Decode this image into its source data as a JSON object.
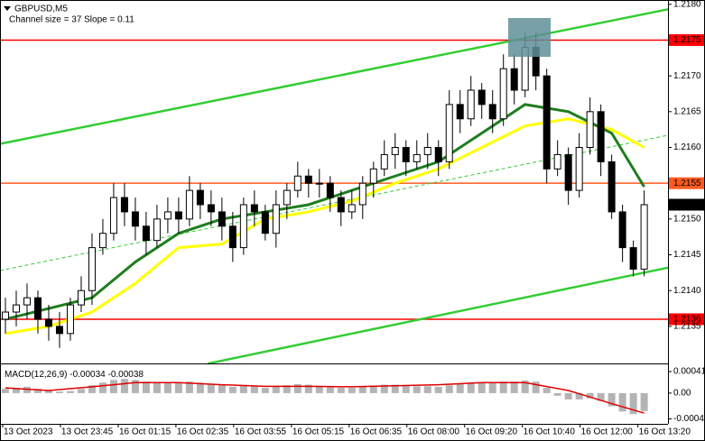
{
  "chart_data": {
    "type": "candlestick",
    "title": "GBPUSD,M5",
    "subtitle": "Channel size = 37 Slope = 0.11",
    "ylim": [
      1.21302,
      1.21806
    ],
    "xlim": [
      -0.5,
      61.2
    ],
    "yticks": [
      {
        "value": 1.218,
        "label": "1.2180"
      },
      {
        "value": 1.217,
        "label": "1.2170"
      },
      1.2165,
      {
        "value": 1.216,
        "label": "1.2160"
      },
      {
        "value": 1.215,
        "label": "1.2150"
      },
      1.2145,
      {
        "value": 1.214,
        "label": "1.2140"
      },
      1.2135
    ],
    "xticks": [
      {
        "value": -0.25,
        "label": "13 Oct 2023"
      },
      {
        "value": 5.08,
        "label": "13 Oct 23:45"
      },
      {
        "value": 10.42,
        "label": "16 Oct 01:15"
      },
      {
        "value": 15.75,
        "label": "16 Oct 02:35"
      },
      {
        "value": 21.08,
        "label": "16 Oct 03:55"
      },
      {
        "value": 26.42,
        "label": "16 Oct 05:15"
      },
      {
        "value": 31.75,
        "label": "16 Oct 06:35"
      },
      {
        "value": 37.08,
        "label": "16 Oct 08:00"
      },
      {
        "value": 42.42,
        "label": "16 Oct 09:20"
      },
      {
        "value": 47.75,
        "label": "16 Oct 10:40"
      },
      {
        "value": 53.08,
        "label": "16 Oct 12:00"
      },
      {
        "value": 58.42,
        "label": "16 Oct 13:20"
      }
    ],
    "x": [
      0,
      1,
      2,
      3,
      4,
      5,
      6,
      7,
      8,
      9,
      10,
      11,
      12,
      13,
      14,
      15,
      16,
      17,
      18,
      19,
      20,
      21,
      22,
      23,
      24,
      25,
      26,
      27,
      28,
      29,
      30,
      31,
      32,
      33,
      34,
      35,
      36,
      37,
      38,
      39,
      40,
      41,
      42,
      43,
      44,
      45,
      46,
      47,
      48,
      49,
      50,
      51,
      52,
      53,
      54,
      55,
      56,
      57,
      58,
      59
    ],
    "open": [
      1.2136,
      1.2137,
      1.2138,
      1.2139,
      1.2136,
      1.2135,
      1.2134,
      1.2138,
      1.214,
      1.2146,
      1.2148,
      1.2153,
      1.2151,
      1.2149,
      1.2147,
      1.215,
      1.2151,
      1.215,
      1.2154,
      1.2152,
      1.2151,
      1.2149,
      1.2146,
      1.2152,
      1.2151,
      1.2148,
      1.2152,
      1.2154,
      1.2156,
      1.2155,
      1.2155,
      1.2153,
      1.2151,
      1.2152,
      1.2155,
      1.2157,
      1.2159,
      1.216,
      1.2158,
      1.2159,
      1.216,
      1.2158,
      1.2166,
      1.2164,
      1.2168,
      1.2166,
      1.2164,
      1.2171,
      1.2168,
      1.2174,
      1.217,
      1.2157,
      1.2159,
      1.2154,
      1.216,
      1.2165,
      1.2158,
      1.2151,
      1.2146,
      1.2143
    ],
    "high": [
      1.2139,
      1.214,
      1.2141,
      1.214,
      1.2138,
      1.2137,
      1.2139,
      1.2142,
      1.2148,
      1.215,
      1.2155,
      1.2155,
      1.2153,
      1.2151,
      1.2152,
      1.2153,
      1.2153,
      1.2156,
      1.2155,
      1.2154,
      1.2153,
      1.2151,
      1.2153,
      1.2154,
      1.2152,
      1.2154,
      1.2155,
      1.2158,
      1.2157,
      1.2157,
      1.2156,
      1.2154,
      1.2154,
      1.2156,
      1.2158,
      1.2161,
      1.2162,
      1.2161,
      1.2161,
      1.2162,
      1.2161,
      1.2168,
      1.2168,
      1.217,
      1.2169,
      1.2168,
      1.2173,
      1.2173,
      1.2176,
      1.2176,
      1.2171,
      1.2161,
      1.216,
      1.2162,
      1.2167,
      1.2166,
      1.2159,
      1.2152,
      1.2147,
      1.2154
    ],
    "low": [
      1.2134,
      1.2135,
      1.2136,
      1.2134,
      1.2133,
      1.2132,
      1.2133,
      1.2137,
      1.2138,
      1.2145,
      1.2147,
      1.2149,
      1.2147,
      1.2145,
      1.2146,
      1.2148,
      1.2148,
      1.2149,
      1.215,
      1.2149,
      1.2147,
      1.2144,
      1.2145,
      1.2149,
      1.2147,
      1.2146,
      1.215,
      1.2153,
      1.2153,
      1.2153,
      1.2151,
      1.2149,
      1.215,
      1.215,
      1.2153,
      1.2156,
      1.2157,
      1.2156,
      1.2157,
      1.2157,
      1.2156,
      1.2157,
      1.2162,
      1.2163,
      1.2164,
      1.2162,
      1.2163,
      1.2166,
      1.2167,
      1.2168,
      1.2155,
      1.2156,
      1.2152,
      1.2153,
      1.2159,
      1.2156,
      1.215,
      1.2144,
      1.2142,
      1.2142
    ],
    "close": [
      1.2137,
      1.2138,
      1.2139,
      1.2136,
      1.2135,
      1.2134,
      1.2138,
      1.214,
      1.2146,
      1.2148,
      1.2153,
      1.2151,
      1.2149,
      1.2147,
      1.215,
      1.2151,
      1.215,
      1.2154,
      1.2152,
      1.2151,
      1.2149,
      1.2146,
      1.2152,
      1.2151,
      1.2148,
      1.2152,
      1.2154,
      1.2156,
      1.2155,
      1.2155,
      1.2153,
      1.2151,
      1.2152,
      1.2155,
      1.2157,
      1.2159,
      1.216,
      1.2158,
      1.2159,
      1.216,
      1.2158,
      1.2166,
      1.2164,
      1.2168,
      1.2166,
      1.2164,
      1.2171,
      1.2168,
      1.2174,
      1.217,
      1.2157,
      1.2159,
      1.2154,
      1.216,
      1.2165,
      1.2158,
      1.2151,
      1.2146,
      1.2143,
      1.2152
    ],
    "lines": [
      {
        "color": "#32cd32",
        "width": 2.5,
        "x": [
          -0.5,
          61.2
        ],
        "values": [
          1.21605,
          1.21793
        ]
      },
      {
        "color": "#32cd32",
        "width": 2.5,
        "x": [
          18.7,
          61.2
        ],
        "values": [
          1.21298,
          1.21432
        ]
      },
      {
        "color": "#32cd32",
        "width": 1,
        "dashed": true,
        "x": [
          -0.5,
          61.2
        ],
        "values": [
          1.21428,
          1.21617
        ]
      },
      {
        "color": "#ffff00",
        "width": 3,
        "x": [
          0,
          4,
          8,
          12,
          16,
          20,
          24,
          28,
          32,
          36,
          40,
          44,
          48,
          52,
          56,
          59
        ],
        "values": [
          1.2134,
          1.2135,
          1.2137,
          1.2141,
          1.2146,
          1.21465,
          1.215,
          1.2151,
          1.21525,
          1.2155,
          1.2157,
          1.216,
          1.2163,
          1.2164,
          1.21625,
          1.216
        ]
      },
      {
        "color": "#1e7d1e",
        "width": 3,
        "x": [
          0,
          4,
          8,
          12,
          16,
          20,
          24,
          28,
          32,
          36,
          40,
          44,
          48,
          52,
          56,
          59
        ],
        "values": [
          1.2136,
          1.21375,
          1.2139,
          1.2144,
          1.2148,
          1.215,
          1.2151,
          1.2152,
          1.2154,
          1.2156,
          1.2158,
          1.2162,
          1.2166,
          1.2165,
          1.2162,
          1.21545
        ]
      }
    ],
    "levels": [
      {
        "value": 1.2175,
        "color": "#ff0000",
        "line": true
      },
      {
        "value": 1.2155,
        "color": "#ff5a1e",
        "line": true
      },
      {
        "value": 1.2152,
        "color": "#000000",
        "line": false
      },
      {
        "value": 1.2136,
        "color": "#ff0000",
        "line": true
      }
    ],
    "macd": {
      "label": "MACD(12,26,9)",
      "ylim": [
        -0.00055,
        0.00053
      ],
      "yticks": [
        0.00041,
        {
          "value": 0,
          "label": "0.00"
        },
        -0.00049
      ],
      "histogram": {
        "color": "#b4b4b4",
        "values": [
          8e-05,
          0.0001,
          0.00012,
          8e-05,
          5e-05,
          3e-05,
          4e-05,
          8e-05,
          0.00015,
          0.0002,
          0.00025,
          0.00027,
          0.00025,
          0.00022,
          0.0002,
          0.0002,
          0.0002,
          0.00022,
          0.0002,
          0.00018,
          0.00015,
          0.00012,
          0.00014,
          0.00013,
          0.0001,
          0.00012,
          0.00015,
          0.00017,
          0.00016,
          0.00014,
          0.00011,
          0.0001,
          0.0001,
          0.00012,
          0.00014,
          0.00016,
          0.00016,
          0.00014,
          0.00013,
          0.00013,
          0.00012,
          0.00015,
          0.00018,
          0.0002,
          0.0002,
          0.00019,
          0.00022,
          0.00022,
          0.00024,
          0.00022,
          0.0001,
          -5e-05,
          -0.00012,
          -0.00012,
          -0.0001,
          -0.00015,
          -0.00025,
          -0.00035,
          -0.0004,
          -0.00034
        ]
      },
      "signal": {
        "color": "#e00000",
        "x": [
          0,
          4,
          8,
          12,
          16,
          20,
          24,
          28,
          32,
          36,
          40,
          44,
          48,
          52,
          56,
          59
        ],
        "values": [
          0.0001,
          5e-05,
          0.00012,
          0.0002,
          0.0002,
          0.00016,
          0.00013,
          0.00013,
          0.00012,
          0.00014,
          0.00016,
          0.0002,
          0.0002,
          5e-05,
          -0.0002,
          -0.00038
        ]
      }
    }
  }
}
